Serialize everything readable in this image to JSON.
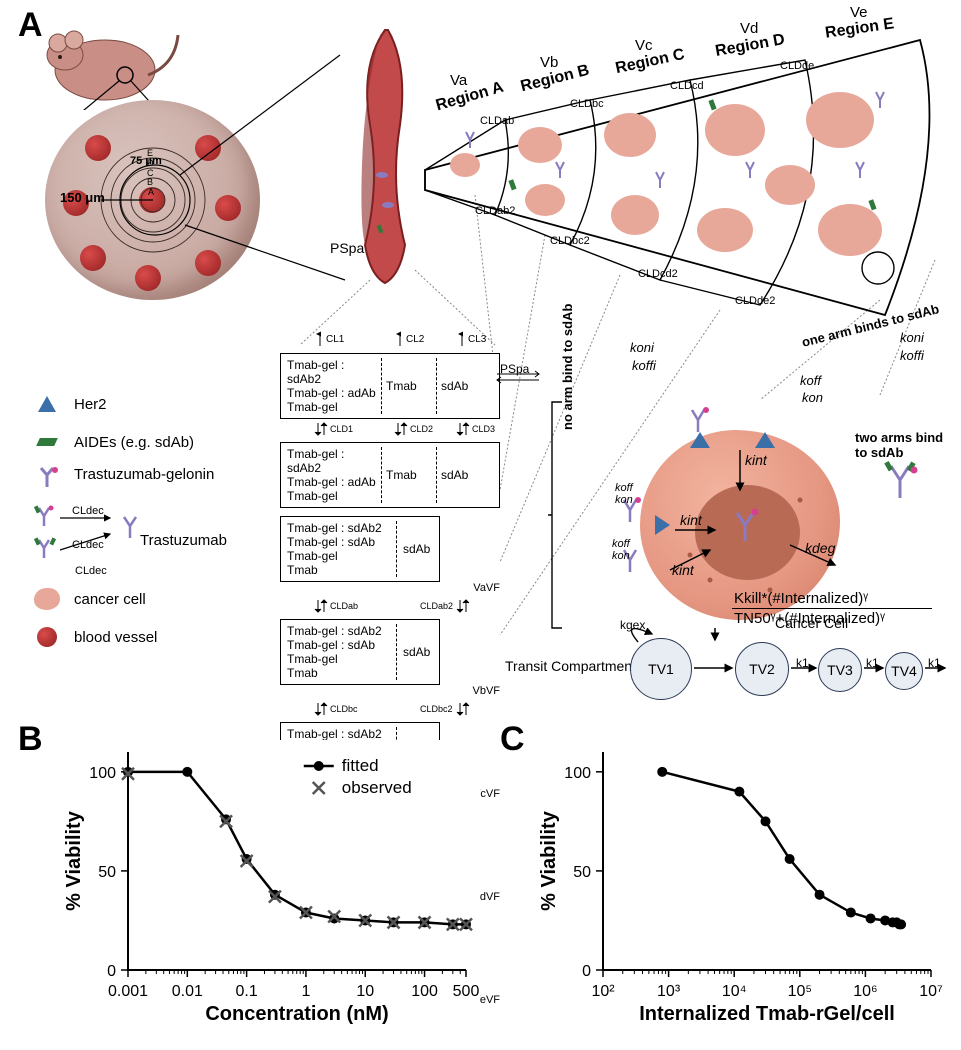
{
  "panels": {
    "A": "A",
    "B": "B",
    "C": "C"
  },
  "colors": {
    "bg": "#ffffff",
    "tumor_fill": "#c9aaa3",
    "blood_vessel": "#a02828",
    "cancer_cell": "#e7a89a",
    "nucleus": "#b86a55",
    "her2_blue": "#3b6fa8",
    "aide_green": "#2f7a3a",
    "antibody_purple": "#8a7bbf",
    "gelonin_pink": "#d63f8e",
    "vessel_red": "#b53a3a",
    "tv_fill": "#e8edf4",
    "tv_stroke": "#2a3a55",
    "axis": "#000000"
  },
  "tumor": {
    "radius_label": "150 μm",
    "inner_label": "75 μm",
    "region_letters": [
      "A",
      "B",
      "C",
      "D",
      "E"
    ]
  },
  "vessel": {
    "label": "PSpa"
  },
  "regions": {
    "order": [
      "A",
      "B",
      "C",
      "D",
      "E"
    ],
    "titles": [
      "Region A",
      "Region B",
      "Region C",
      "Region D",
      "Region E"
    ],
    "volumes": [
      "Va",
      "Vb",
      "Vc",
      "Vd",
      "Ve"
    ],
    "cld_upper": [
      "CLDab",
      "CLDbc",
      "CLDcd",
      "CLDde"
    ],
    "cld_lower": [
      "CLDab2",
      "CLDbc2",
      "CLDcd2",
      "CLDde2"
    ]
  },
  "side_labels": {
    "one_arm": "one arm binds to sdAb",
    "no_arm": "no arm bind to sdAb",
    "two_arm": "two arms bind to sdAb",
    "koni": "koni",
    "koffi": "koffi",
    "koff": "koff",
    "kon": "kon"
  },
  "legend": {
    "her2": "Her2",
    "aide": "AIDEs (e.g. sdAb)",
    "tgel": "Trastuzumab-gelonin",
    "trastuzumab": "Trastuzumab",
    "cldec": "CLdec",
    "cancer": "cancer cell",
    "bv": "blood vessel"
  },
  "compartments": {
    "top_cl": [
      "CL1",
      "CL2",
      "CL3"
    ],
    "cld_row2": [
      "CLD1",
      "CLD2",
      "CLD3"
    ],
    "pspa": "PSpa",
    "rows_col1": [
      "Tmab-gel : sdAb2",
      "Tmab-gel : sdAb",
      "Tmab-gel",
      "Tmab"
    ],
    "rows_col1_short": [
      "Tmab-gel : sdAb2",
      "Tmab-gel : adAb",
      "Tmab-gel"
    ],
    "col2": "Tmab",
    "col3": "sdAb",
    "suffixes": [
      "VaVF",
      "VbVF",
      "VcVF",
      "VdVF",
      "VeVF"
    ],
    "vertical_cld": [
      [
        "CLDab",
        "CLDab2"
      ],
      [
        "CLDbc",
        "CLDbc2"
      ],
      [
        "CLDcd",
        "CLDcd2"
      ],
      [
        "CLDde",
        "CLDde2"
      ]
    ]
  },
  "cell": {
    "kint": "kint",
    "kdeg": "kdeg",
    "koff": "koff",
    "kon": "kon",
    "label": "Cancer Cell"
  },
  "transit": {
    "label": "Transit Compartments",
    "kgex": "kgex",
    "nodes": [
      "TV1",
      "TV2",
      "TV3",
      "TV4"
    ],
    "k1": "k1",
    "formula_top": "Kkill*(#Internalized)ᵞ",
    "formula_bottom": "TN50ᵞ+(#Internalized)ᵞ"
  },
  "chartB": {
    "type": "line+scatter",
    "x_label": "Concentration (nM)",
    "y_label": "% Viability",
    "x_log": true,
    "xlim": [
      0.001,
      500
    ],
    "ylim": [
      0,
      110
    ],
    "x_ticks": [
      0.001,
      0.01,
      0.1,
      1,
      10,
      100
    ],
    "x_tick_labels": [
      "0.001",
      "0.01",
      "0.1",
      "1",
      "10",
      "100"
    ],
    "x_extra_tick": 500,
    "x_extra_label": "500",
    "y_ticks": [
      0,
      50,
      100
    ],
    "y_tick_labels": [
      "0",
      "50",
      "100"
    ],
    "series_fitted_label": "fitted",
    "series_observed_label": "observed",
    "fitted_marker": "dot",
    "observed_marker": "x",
    "line_color": "#000000",
    "observed_color": "#666666",
    "points_x": [
      0.001,
      0.01,
      0.045,
      0.1,
      0.3,
      1,
      3,
      10,
      30,
      100,
      300,
      500
    ],
    "points_y": [
      100,
      100,
      76,
      56,
      38,
      29,
      26,
      25,
      24,
      24,
      23,
      23
    ],
    "observed_x": [
      0.001,
      0.045,
      0.1,
      0.3,
      1,
      3,
      10,
      30,
      100,
      300,
      500
    ],
    "observed_y": [
      99,
      75,
      55,
      37,
      29,
      27,
      25,
      24,
      24,
      23,
      23
    ]
  },
  "chartC": {
    "type": "line+scatter",
    "x_label": "Internalized Tmab-rGel/cell",
    "y_label": "% Viability",
    "x_log": true,
    "xlim": [
      100,
      10000000.0
    ],
    "ylim": [
      0,
      110
    ],
    "x_ticks": [
      100,
      1000,
      10000,
      100000,
      1000000,
      10000000
    ],
    "x_tick_labels": [
      "10²",
      "10³",
      "10⁴",
      "10⁵",
      "10⁶",
      "10⁷"
    ],
    "y_ticks": [
      0,
      50,
      100
    ],
    "y_tick_labels": [
      "0",
      "50",
      "100"
    ],
    "line_color": "#000000",
    "points_x": [
      800,
      12000,
      30000,
      70000,
      200000,
      600000,
      1200000,
      2000000,
      2600000,
      3000000,
      3300000,
      3500000
    ],
    "points_y": [
      100,
      90,
      75,
      56,
      38,
      29,
      26,
      25,
      24,
      24,
      23,
      23
    ]
  },
  "fonts": {
    "panel_label_size": 34,
    "axis_label_size": 20,
    "tick_size": 16,
    "legend_size": 15,
    "small": 12
  }
}
